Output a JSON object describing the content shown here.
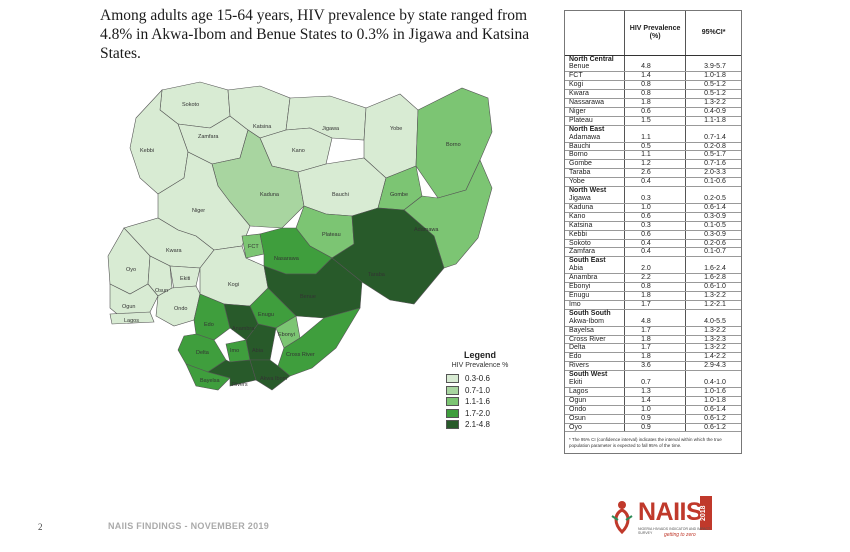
{
  "headline": "Among adults age 15-64 years, HIV prevalence by state ranged from 4.8% in Akwa-Ibom and Benue States to 0.3% in Jigawa and Katsina States.",
  "colors": {
    "c1": "#d8ebd3",
    "c2": "#a8d5a0",
    "c3": "#7cc573",
    "c4": "#3f9e3d",
    "c5": "#285a2a"
  },
  "map_labels": {
    "sokoto": "Sokoto",
    "zamfara": "Zamfara",
    "katsina": "Katsina",
    "jigawa": "Jigawa",
    "yobe": "Yobe",
    "borno": "Borno",
    "kebbi": "Kebbi",
    "kano": "Kano",
    "kaduna": "Kaduna",
    "bauchi": "Bauchi",
    "gombe": "Gombe",
    "niger": "Niger",
    "adamawa": "Adamawa",
    "fct": "FCT",
    "plateau": "Plateau",
    "nasarawa": "Nasarawa",
    "kwara": "Kwara",
    "taraba": "Taraba",
    "oyo": "Oyo",
    "osun": "Osun",
    "ekiti": "Ekiti",
    "kogi": "Kogi",
    "benue": "Benue",
    "ogun": "Ogun",
    "ondo": "Ondo",
    "lagos": "Lagos",
    "edo": "Edo",
    "enugu": "Enugu",
    "anambra": "Anambra",
    "ebonyi": "Ebonyi",
    "delta": "Delta",
    "imo": "Imo",
    "abia": "Abia",
    "cross_river": "Cross River",
    "bayelsa": "Bayelsa",
    "rivers": "Rivers",
    "akwa_ibom": "Akwa Ibom"
  },
  "legend": {
    "title": "Legend",
    "subtitle": "HIV Prevalence %",
    "items": [
      {
        "label": "0.3-0.6",
        "color": "#d8ebd3"
      },
      {
        "label": "0.7-1.0",
        "color": "#a8d5a0"
      },
      {
        "label": "1.1-1.6",
        "color": "#7cc573"
      },
      {
        "label": "1.7-2.0",
        "color": "#3f9e3d"
      },
      {
        "label": "2.1-4.8",
        "color": "#285a2a"
      }
    ]
  },
  "table": {
    "col_value": "HIV Prevalence (%)",
    "col_ci": "95%CI*",
    "regions": [
      {
        "name": "North Central",
        "rows": [
          [
            "Benue",
            "4.8",
            "3.9-5.7"
          ],
          [
            "FCT",
            "1.4",
            "1.0-1.8"
          ],
          [
            "Kogi",
            "0.8",
            "0.5-1.2"
          ],
          [
            "Kwara",
            "0.8",
            "0.5-1.2"
          ],
          [
            "Nassarawa",
            "1.8",
            "1.3-2.2"
          ],
          [
            "Niger",
            "0.6",
            "0.4-0.9"
          ],
          [
            "Plateau",
            "1.5",
            "1.1-1.8"
          ]
        ]
      },
      {
        "name": "North East",
        "rows": [
          [
            "Adamawa",
            "1.1",
            "0.7-1.4"
          ],
          [
            "Bauchi",
            "0.5",
            "0.2-0.8"
          ],
          [
            "Borno",
            "1.1",
            "0.5-1.7"
          ],
          [
            "Gombe",
            "1.2",
            "0.7-1.6"
          ],
          [
            "Taraba",
            "2.6",
            "2.0-3.3"
          ],
          [
            "Yobe",
            "0.4",
            "0.1-0.6"
          ]
        ]
      },
      {
        "name": "North West",
        "rows": [
          [
            "Jigawa",
            "0.3",
            "0.2-0.5"
          ],
          [
            "Kaduna",
            "1.0",
            "0.6-1.4"
          ],
          [
            "Kano",
            "0.6",
            "0.3-0.9"
          ],
          [
            "Katsina",
            "0.3",
            "0.1-0.5"
          ],
          [
            "Kebbi",
            "0.6",
            "0.3-0.9"
          ],
          [
            "Sokoto",
            "0.4",
            "0.2-0.6"
          ],
          [
            "Zamfara",
            "0.4",
            "0.1-0.7"
          ]
        ]
      },
      {
        "name": "South East",
        "rows": [
          [
            "Abia",
            "2.0",
            "1.6-2.4"
          ],
          [
            "Anambra",
            "2.2",
            "1.6-2.8"
          ],
          [
            "Ebonyi",
            "0.8",
            "0.6-1.0"
          ],
          [
            "Enugu",
            "1.8",
            "1.3-2.2"
          ],
          [
            "Imo",
            "1.7",
            "1.2-2.1"
          ]
        ]
      },
      {
        "name": "South South",
        "rows": [
          [
            "Akwa-Ibom",
            "4.8",
            "4.0-5.5"
          ],
          [
            "Bayelsa",
            "1.7",
            "1.3-2.2"
          ],
          [
            "Cross River",
            "1.8",
            "1.3-2.3"
          ],
          [
            "Delta",
            "1.7",
            "1.3-2.2"
          ],
          [
            "Edo",
            "1.8",
            "1.4-2.2"
          ],
          [
            "Rivers",
            "3.6",
            "2.9-4.3"
          ]
        ]
      },
      {
        "name": "South West",
        "rows": [
          [
            "Ekiti",
            "0.7",
            "0.4-1.0"
          ],
          [
            "Lagos",
            "1.3",
            "1.0-1.6"
          ],
          [
            "Ogun",
            "1.4",
            "1.0-1.8"
          ],
          [
            "Ondo",
            "1.0",
            "0.6-1.4"
          ],
          [
            "Osun",
            "0.9",
            "0.6-1.2"
          ],
          [
            "Oyo",
            "0.9",
            "0.6-1.2"
          ]
        ]
      }
    ],
    "footnote": "* The 95% CI (confidence interval) indicates the interval within which the true population parameter is expected to fall 95% of the time."
  },
  "footer": {
    "page_number": "2",
    "text": "NAIIS FINDINGS - NOVEMBER 2019"
  },
  "logo": {
    "word": "NAIIS",
    "year": "2018",
    "tag": "NIGERIA HIV/AIDS INDICATOR AND IMPACT SURVEY",
    "tag2": "getting to zero"
  }
}
